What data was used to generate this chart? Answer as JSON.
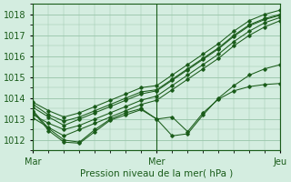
{
  "title": "",
  "xlabel": "Pression niveau de la mer( hPa )",
  "bg_color": "#d4ede0",
  "grid_color": "#98c4a8",
  "line_color": "#1a5c1a",
  "ylim": [
    1011.5,
    1018.5
  ],
  "xlim": [
    0,
    48
  ],
  "yticks": [
    1012,
    1013,
    1014,
    1015,
    1016,
    1017,
    1018
  ],
  "xtick_positions": [
    0,
    24,
    48
  ],
  "xtick_labels": [
    "Mar",
    "Mer",
    "Jeu"
  ],
  "series": [
    {
      "x": [
        0,
        3,
        6,
        9,
        12,
        15,
        18,
        21,
        24,
        27,
        30,
        33,
        36,
        39,
        42,
        45,
        48
      ],
      "y": [
        1013.7,
        1013.2,
        1012.9,
        1013.1,
        1013.4,
        1013.7,
        1014.0,
        1014.3,
        1014.4,
        1014.9,
        1015.4,
        1015.9,
        1016.4,
        1017.0,
        1017.5,
        1017.8,
        1018.0
      ]
    },
    {
      "x": [
        0,
        3,
        6,
        9,
        12,
        15,
        18,
        21,
        24,
        27,
        30,
        33,
        36,
        39,
        42,
        45,
        48
      ],
      "y": [
        1013.2,
        1012.8,
        1012.5,
        1012.7,
        1013.0,
        1013.3,
        1013.6,
        1013.9,
        1014.1,
        1014.6,
        1015.1,
        1015.6,
        1016.1,
        1016.7,
        1017.2,
        1017.6,
        1017.85
      ]
    },
    {
      "x": [
        0,
        3,
        6,
        9,
        12,
        15,
        18,
        21,
        24,
        27,
        30,
        33,
        36,
        39,
        42,
        45,
        48
      ],
      "y": [
        1013.05,
        1012.6,
        1012.2,
        1012.5,
        1012.8,
        1013.1,
        1013.4,
        1013.7,
        1013.9,
        1014.4,
        1014.9,
        1015.4,
        1015.9,
        1016.5,
        1017.0,
        1017.4,
        1017.7
      ]
    },
    {
      "x": [
        0,
        3,
        6,
        9,
        12,
        15,
        18,
        21,
        24,
        27,
        30,
        33,
        36,
        39,
        42,
        45,
        48
      ],
      "y": [
        1013.55,
        1013.1,
        1012.7,
        1013.0,
        1013.3,
        1013.6,
        1013.9,
        1014.2,
        1014.35,
        1014.85,
        1015.35,
        1015.85,
        1016.35,
        1016.95,
        1017.45,
        1017.75,
        1017.95
      ]
    },
    {
      "x": [
        0,
        3,
        6,
        9,
        12,
        15,
        18,
        21,
        24,
        27,
        30,
        33,
        36,
        39,
        42,
        45,
        48
      ],
      "y": [
        1013.8,
        1013.4,
        1013.1,
        1013.3,
        1013.6,
        1013.9,
        1014.2,
        1014.5,
        1014.6,
        1015.1,
        1015.6,
        1016.1,
        1016.6,
        1017.2,
        1017.7,
        1018.0,
        1018.2
      ]
    },
    {
      "x": [
        0,
        3,
        6,
        9,
        12,
        15,
        18,
        21,
        24,
        27,
        30,
        33,
        36,
        39,
        42,
        45,
        48
      ],
      "y": [
        1013.4,
        1012.55,
        1012.0,
        1011.9,
        1012.5,
        1013.0,
        1013.3,
        1013.5,
        1013.0,
        1012.2,
        1012.3,
        1013.2,
        1014.0,
        1014.6,
        1015.1,
        1015.4,
        1015.6
      ]
    },
    {
      "x": [
        0,
        3,
        6,
        9,
        12,
        15,
        18,
        21,
        24,
        27,
        30,
        33,
        36,
        39,
        42,
        45,
        48
      ],
      "y": [
        1013.35,
        1012.45,
        1011.9,
        1011.85,
        1012.4,
        1012.95,
        1013.2,
        1013.45,
        1013.0,
        1013.1,
        1012.4,
        1013.3,
        1013.95,
        1014.35,
        1014.55,
        1014.65,
        1014.7
      ]
    }
  ]
}
